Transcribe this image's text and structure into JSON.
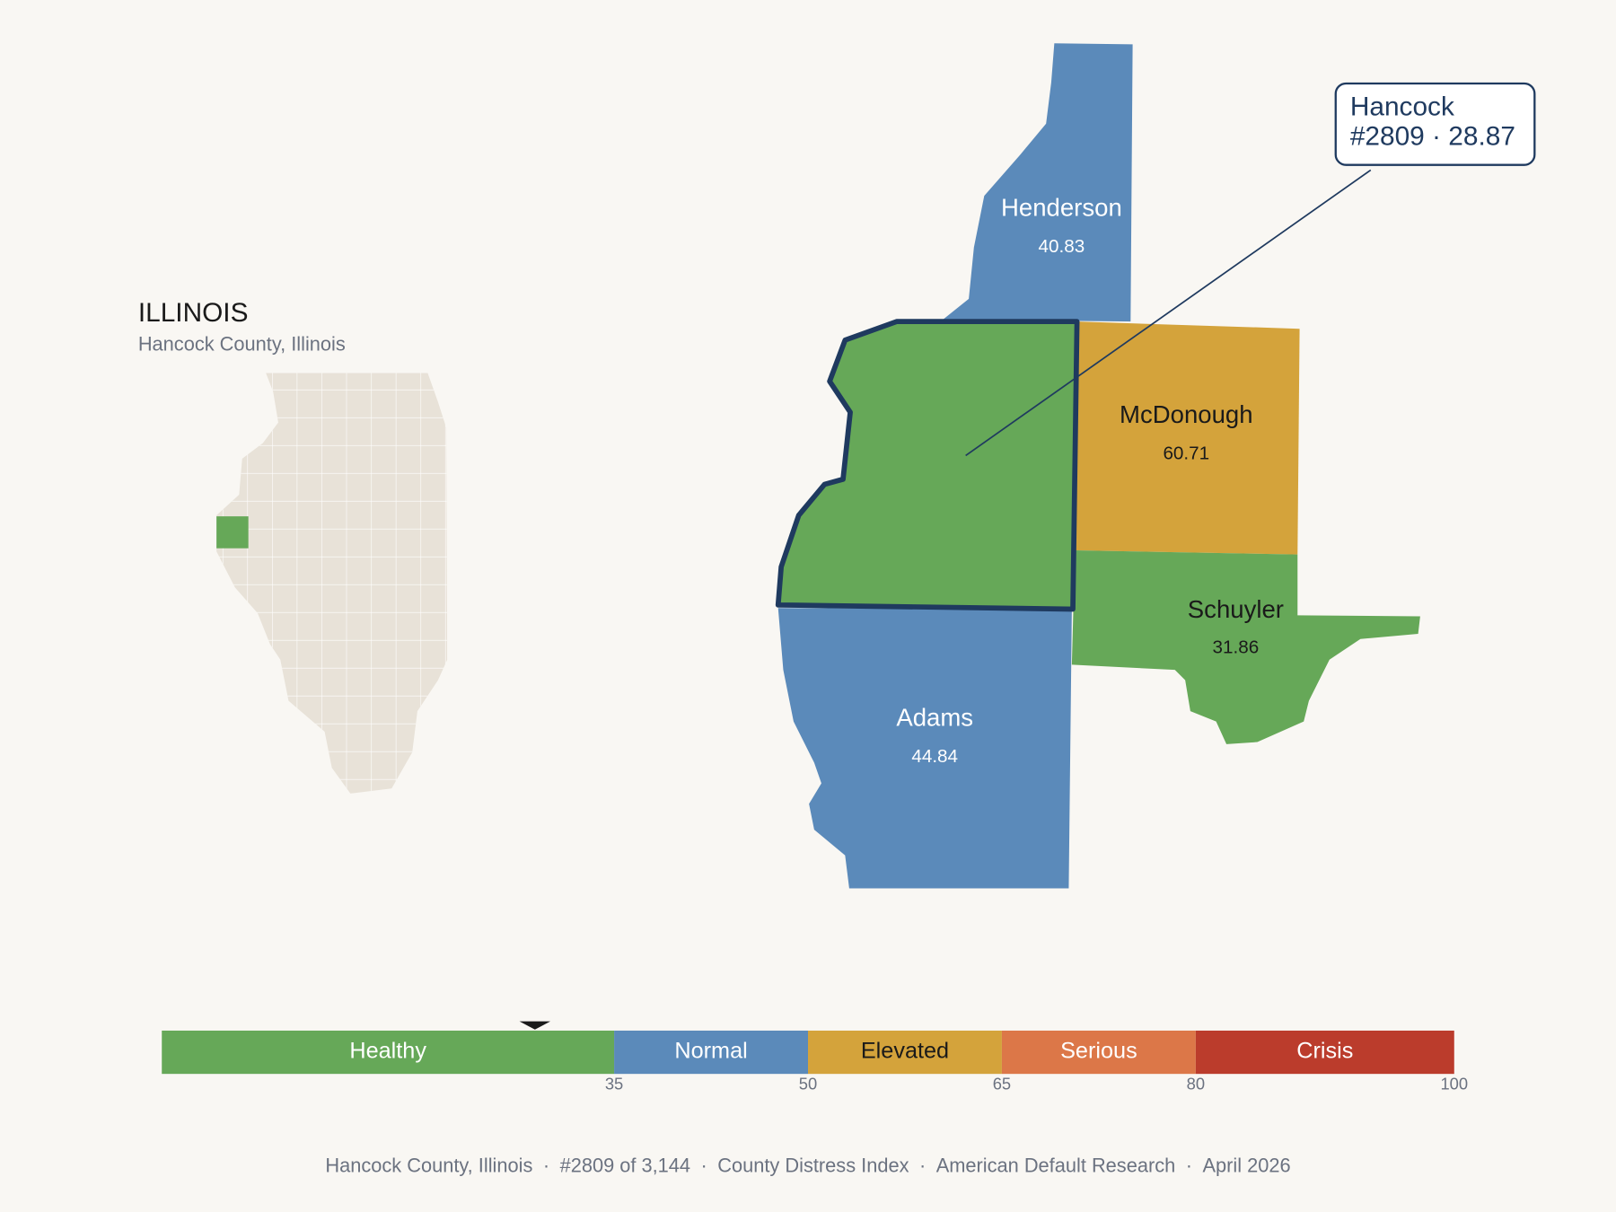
{
  "inset": {
    "title": "ILLINOIS",
    "subtitle": "Hancock County, Illinois",
    "highlight_color": "#66a858"
  },
  "map": {
    "counties": [
      {
        "name": "Hancock",
        "value": 28.87,
        "color": "#66a858",
        "text_color": "#ffffff"
      },
      {
        "name": "Henderson",
        "value": 40.83,
        "color": "#5b8aba",
        "text_color": "#ffffff"
      },
      {
        "name": "McDonough",
        "value": 60.71,
        "color": "#d4a33b",
        "text_color": "#1a1a1a"
      },
      {
        "name": "Schuyler",
        "value": 31.86,
        "color": "#66a858",
        "text_color": "#1a1a1a"
      },
      {
        "name": "Adams",
        "value": 44.84,
        "color": "#5b8aba",
        "text_color": "#ffffff"
      }
    ],
    "callout": {
      "title": "Hancock",
      "label": "#2809 · 28.87"
    }
  },
  "scale": {
    "min": 0,
    "bands": [
      {
        "label": "Healthy",
        "max": 35,
        "color": "#66a858",
        "text_color": "#ffffff"
      },
      {
        "label": "Normal",
        "max": 50,
        "color": "#5b8aba",
        "text_color": "#ffffff"
      },
      {
        "label": "Elevated",
        "max": 65,
        "color": "#d4a33b",
        "text_color": "#1a1a1a"
      },
      {
        "label": "Serious",
        "max": 80,
        "color": "#dc7748",
        "text_color": "#ffffff"
      },
      {
        "label": "Crisis",
        "max": 100,
        "color": "#bb3c2c",
        "text_color": "#ffffff"
      }
    ]
  },
  "footer": {
    "separator": "·",
    "parts": [
      "Hancock County, Illinois",
      "#2809 of 3,144",
      "County Distress Index",
      "American Default Research",
      "April 2026"
    ]
  }
}
